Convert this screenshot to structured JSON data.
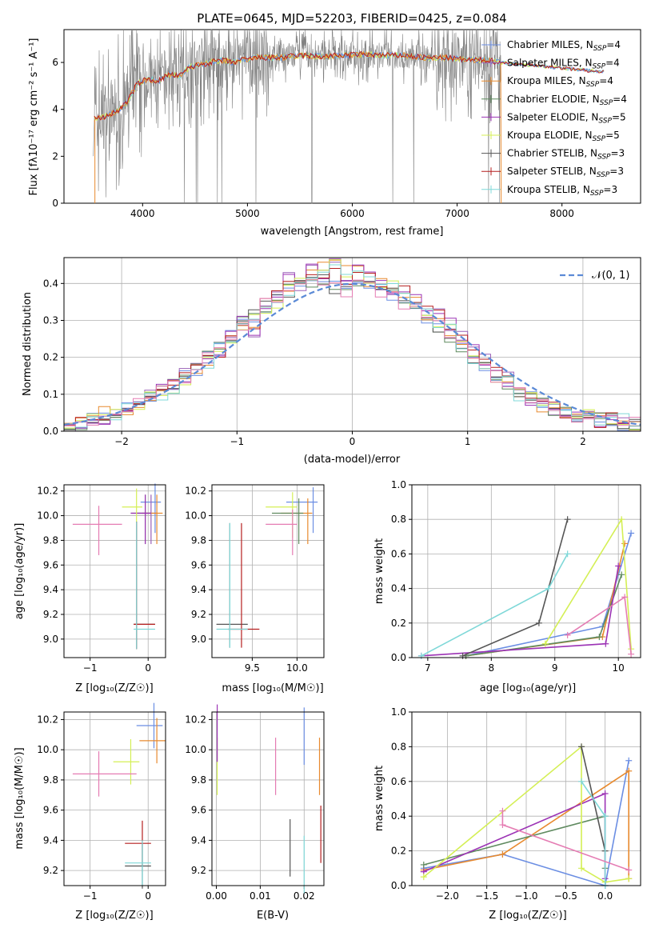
{
  "colors": {
    "cMILES": "#6b8ee3",
    "sMILES": "#9a60b8",
    "kMILES": "#e88a2e",
    "cELODIE": "#5f8a5f",
    "sELODIE": "#9c33b5",
    "kELODIE": "#d4ef55",
    "cSTELIB": "#555555",
    "sSTELIB": "#b51f1f",
    "kSTELIB": "#7fd8d8",
    "pink": "#e57cb3",
    "normal": "#5b8ad6",
    "grey": "#808080"
  },
  "figure": {
    "title": "PLATE=0645, MJD=52203, FIBERID=0425, z=0.084"
  },
  "spectrum": {
    "xlabel": "wavelength [Angstrom, rest frame]",
    "ylabel": "Flux [fλ10⁻¹⁷ erg cm⁻² s⁻¹ A⁻¹]",
    "xticks": [
      "4000",
      "5000",
      "6000",
      "7000",
      "8000"
    ],
    "yticks": [
      "0",
      "2",
      "4",
      "6"
    ],
    "xlim": [
      3250,
      8750
    ],
    "ylim": [
      0,
      7.4
    ],
    "legend": [
      {
        "label": "Chabrier MILES, N",
        "sub": "SSP",
        "suffix": "=4",
        "color_key": "cMILES"
      },
      {
        "label": "Salpeter MILES, N",
        "sub": "SSP",
        "suffix": "=4",
        "color_key": "sMILES"
      },
      {
        "label": "Kroupa MILES, N",
        "sub": "SSP",
        "suffix": "=4",
        "color_key": "kMILES"
      },
      {
        "label": "Chabrier ELODIE, N",
        "sub": "SSP",
        "suffix": "=4",
        "color_key": "cELODIE"
      },
      {
        "label": "Salpeter ELODIE, N",
        "sub": "SSP",
        "suffix": "=5",
        "color_key": "sELODIE"
      },
      {
        "label": "Kroupa ELODIE, N",
        "sub": "SSP",
        "suffix": "=5",
        "color_key": "kELODIE"
      },
      {
        "label": "Chabrier STELIB, N",
        "sub": "SSP",
        "suffix": "=3",
        "color_key": "cSTELIB"
      },
      {
        "label": "Salpeter STELIB, N",
        "sub": "SSP",
        "suffix": "=3",
        "color_key": "sSTELIB"
      },
      {
        "label": "Kroupa STELIB, N",
        "sub": "SSP",
        "suffix": "=3",
        "color_key": "kSTELIB"
      }
    ]
  },
  "residuals": {
    "xlabel": "(data-model)/error",
    "ylabel": "Normed distribution",
    "xticks": [
      "−2",
      "−1",
      "0",
      "1",
      "2"
    ],
    "yticks": [
      "0.0",
      "0.1",
      "0.2",
      "0.3",
      "0.4"
    ],
    "legend_label": "𝒩(0, 1)"
  },
  "panels": {
    "age_vs_Z": {
      "xlabel": "Z [log₁₀(Z/Z☉)]",
      "ylabel": "age  [log₁₀(age/yr)]",
      "xticks": [
        "−1",
        "0"
      ],
      "yticks": [
        "9.0",
        "9.2",
        "9.4",
        "9.6",
        "9.8",
        "10.0",
        "10.2"
      ]
    },
    "age_vs_mass": {
      "xlabel": "mass [log₁₀(M/M☉)]",
      "xticks": [
        "9.5",
        "10.0"
      ],
      "yticks": [
        "9.0",
        "9.2",
        "9.4",
        "9.6",
        "9.8",
        "10.0",
        "10.2"
      ]
    },
    "mw_vs_age": {
      "xlabel": "age  [log₁₀(age/yr)]",
      "ylabel": "mass weight",
      "xticks": [
        "7",
        "8",
        "9",
        "10"
      ],
      "yticks": [
        "0.0",
        "0.2",
        "0.4",
        "0.6",
        "0.8",
        "1.0"
      ]
    },
    "mass_vs_Z": {
      "xlabel": "Z [log₁₀(Z/Z☉)]",
      "ylabel": "mass [log₁₀(M/M☉)]",
      "xticks": [
        "−1",
        "0"
      ],
      "yticks": [
        "9.2",
        "9.4",
        "9.6",
        "9.8",
        "10.0",
        "10.2"
      ]
    },
    "mass_vs_ebv": {
      "xlabel": "E(B-V)",
      "xticks": [
        "0.00",
        "0.01",
        "0.02"
      ],
      "yticks": [
        "9.2",
        "9.4",
        "9.6",
        "9.8",
        "10.0",
        "10.2"
      ]
    },
    "mw_vs_Z": {
      "xlabel": "Z [log₁₀(Z/Z☉)]",
      "ylabel": "mass weight",
      "xticks": [
        "−2.0",
        "−1.5",
        "−1.0",
        "−0.5",
        "0.0"
      ],
      "yticks": [
        "0.0",
        "0.2",
        "0.4",
        "0.6",
        "0.8",
        "1.0"
      ]
    }
  },
  "chart_data": [
    {
      "type": "line",
      "title": "PLATE=0645, MJD=52203, FIBERID=0425, z=0.084",
      "xlabel": "wavelength [Angstrom, rest frame]",
      "ylabel": "Flux [fλ10⁻¹⁷ erg cm⁻² s⁻¹ A⁻¹]",
      "xlim": [
        3250,
        8750
      ],
      "ylim": [
        0,
        7.4
      ],
      "series": [
        {
          "name": "data",
          "x": [
            3550,
            3650,
            3750,
            3850,
            3950,
            4050,
            4150,
            4250,
            4350,
            4450,
            4550,
            4650,
            4750,
            4850,
            4950,
            5100,
            5300,
            5500,
            5700,
            5900,
            6100,
            6300,
            6500,
            6700,
            6900,
            7100,
            7300,
            7400
          ],
          "y": [
            3.6,
            3.7,
            3.9,
            4.3,
            5.1,
            5.3,
            5.2,
            5.5,
            5.4,
            5.8,
            5.9,
            6.0,
            6.1,
            6.0,
            6.1,
            6.2,
            6.2,
            6.3,
            6.25,
            6.3,
            6.35,
            6.3,
            6.3,
            6.2,
            6.2,
            6.1,
            6.1,
            6.0
          ]
        }
      ]
    },
    {
      "type": "bar",
      "xlabel": "(data-model)/error",
      "ylabel": "Normed distribution",
      "xlim": [
        -2.5,
        2.5
      ],
      "ylim": [
        0,
        0.47
      ],
      "x": [
        -2.45,
        -2.35,
        -2.25,
        -2.15,
        -2.05,
        -1.95,
        -1.85,
        -1.75,
        -1.65,
        -1.55,
        -1.45,
        -1.35,
        -1.25,
        -1.15,
        -1.05,
        -0.95,
        -0.85,
        -0.75,
        -0.65,
        -0.55,
        -0.45,
        -0.35,
        -0.25,
        -0.15,
        -0.05,
        0.05,
        0.15,
        0.25,
        0.35,
        0.45,
        0.55,
        0.65,
        0.75,
        0.85,
        0.95,
        1.05,
        1.15,
        1.25,
        1.35,
        1.45,
        1.55,
        1.65,
        1.75,
        1.85,
        1.95,
        2.05,
        2.15,
        2.25,
        2.35,
        2.45
      ],
      "series": [
        {
          "name": "Chabrier MILES, N_SSP=4",
          "values": [
            0.01,
            0.02,
            0.03,
            0.04,
            0.05,
            0.06,
            0.08,
            0.09,
            0.11,
            0.13,
            0.15,
            0.17,
            0.2,
            0.23,
            0.26,
            0.29,
            0.31,
            0.34,
            0.36,
            0.38,
            0.39,
            0.4,
            0.41,
            0.39,
            0.38,
            0.4,
            0.39,
            0.38,
            0.37,
            0.35,
            0.33,
            0.31,
            0.28,
            0.26,
            0.23,
            0.2,
            0.18,
            0.15,
            0.13,
            0.11,
            0.09,
            0.08,
            0.06,
            0.05,
            0.04,
            0.04,
            0.03,
            0.03,
            0.02,
            0.02
          ]
        },
        {
          "name": "Kroupa ELODIE, N_SSP=5",
          "values": [
            0.01,
            0.02,
            0.02,
            0.03,
            0.05,
            0.06,
            0.08,
            0.1,
            0.12,
            0.13,
            0.15,
            0.18,
            0.2,
            0.22,
            0.26,
            0.3,
            0.27,
            0.34,
            0.37,
            0.42,
            0.4,
            0.44,
            0.42,
            0.45,
            0.4,
            0.43,
            0.42,
            0.4,
            0.38,
            0.38,
            0.36,
            0.33,
            0.32,
            0.29,
            0.26,
            0.22,
            0.19,
            0.16,
            0.14,
            0.11,
            0.09,
            0.07,
            0.06,
            0.05,
            0.04,
            0.04,
            0.03,
            0.03,
            0.02,
            0.02
          ]
        },
        {
          "name": "Chabrier STELIB, N_SSP=3",
          "values": [
            0.02,
            0.02,
            0.03,
            0.05,
            0.05,
            0.06,
            0.07,
            0.09,
            0.1,
            0.12,
            0.14,
            0.17,
            0.19,
            0.22,
            0.25,
            0.28,
            0.3,
            0.33,
            0.35,
            0.38,
            0.4,
            0.42,
            0.45,
            0.46,
            0.43,
            0.44,
            0.41,
            0.4,
            0.39,
            0.37,
            0.35,
            0.32,
            0.29,
            0.27,
            0.24,
            0.2,
            0.18,
            0.15,
            0.13,
            0.1,
            0.09,
            0.07,
            0.06,
            0.05,
            0.04,
            0.04,
            0.03,
            0.03,
            0.03,
            0.02
          ]
        }
      ]
    },
    {
      "type": "scatter",
      "xlabel": "Z [log₁₀(Z/Z☉)]",
      "ylabel": "age  [log₁₀(age/yr)]",
      "xlim": [
        -1.45,
        0.3
      ],
      "ylim": [
        8.85,
        10.25
      ],
      "series": [
        {
          "name": "Chabrier MILES",
          "x": [
            0.12
          ],
          "y": [
            10.11
          ]
        },
        {
          "name": "Salpeter MILES",
          "x": [
            0.05
          ],
          "y": [
            10.02
          ]
        },
        {
          "name": "Kroupa MILES",
          "x": [
            0.15
          ],
          "y": [
            10.02
          ]
        },
        {
          "name": "Chabrier ELODIE",
          "x": [
            -0.05
          ],
          "y": [
            10.02
          ]
        },
        {
          "name": "Salpeter ELODIE",
          "x": [
            -0.05
          ],
          "y": [
            10.02
          ]
        },
        {
          "name": "Kroupa ELODIE",
          "x": [
            -0.2
          ],
          "y": [
            10.07
          ]
        },
        {
          "name": "Chabrier STELIB",
          "x": [
            -0.2
          ],
          "y": [
            9.12
          ]
        },
        {
          "name": "Salpeter STELIB",
          "x": [
            -0.2
          ],
          "y": [
            9.12
          ]
        },
        {
          "name": "Kroupa STELIB",
          "x": [
            -0.2
          ],
          "y": [
            9.08
          ]
        },
        {
          "name": "pink",
          "x": [
            -0.85
          ],
          "y": [
            9.93
          ]
        }
      ]
    },
    {
      "type": "scatter",
      "xlabel": "mass [log₁₀(M/M☉)]",
      "xlim": [
        9.05,
        10.3
      ],
      "ylim": [
        8.85,
        10.25
      ],
      "series": [
        {
          "name": "Chabrier MILES",
          "x": [
            10.18
          ],
          "y": [
            10.11
          ]
        },
        {
          "name": "Kroupa MILES",
          "x": [
            10.12
          ],
          "y": [
            10.02
          ]
        },
        {
          "name": "Chabrier ELODIE",
          "x": [
            10.02
          ],
          "y": [
            10.02
          ]
        },
        {
          "name": "Kroupa ELODIE",
          "x": [
            9.95
          ],
          "y": [
            10.07
          ]
        },
        {
          "name": "Chabrier STELIB",
          "x": [
            9.25
          ],
          "y": [
            9.12
          ]
        },
        {
          "name": "Salpeter STELIB",
          "x": [
            9.38
          ],
          "y": [
            9.08
          ]
        },
        {
          "name": "Kroupa STELIB",
          "x": [
            9.25
          ],
          "y": [
            9.08
          ]
        },
        {
          "name": "pink",
          "x": [
            9.95
          ],
          "y": [
            9.93
          ]
        }
      ]
    },
    {
      "type": "line",
      "xlabel": "age  [log₁₀(age/yr)]",
      "ylabel": "mass weight",
      "xlim": [
        6.75,
        10.35
      ],
      "ylim": [
        0,
        1
      ],
      "series": [
        {
          "name": "Chabrier MILES",
          "x": [
            7.6,
            9.75,
            10.2
          ],
          "y": [
            0.01,
            0.18,
            0.72
          ]
        },
        {
          "name": "Kroupa MILES",
          "x": [
            7.6,
            9.75,
            10.1
          ],
          "y": [
            0.01,
            0.12,
            0.66
          ]
        },
        {
          "name": "Chabrier ELODIE",
          "x": [
            7.6,
            9.7,
            10.05
          ],
          "y": [
            0.01,
            0.12,
            0.48
          ]
        },
        {
          "name": "Salpeter ELODIE",
          "x": [
            6.9,
            9.8,
            10.0
          ],
          "y": [
            0.01,
            0.08,
            0.53
          ]
        },
        {
          "name": "Kroupa ELODIE",
          "x": [
            8.85,
            10.05,
            10.2
          ],
          "y": [
            0.08,
            0.8,
            0.05
          ]
        },
        {
          "name": "Chabrier STELIB",
          "x": [
            7.55,
            8.75,
            9.2
          ],
          "y": [
            0.01,
            0.2,
            0.8
          ]
        },
        {
          "name": "Kroupa STELIB",
          "x": [
            6.9,
            8.9,
            9.2
          ],
          "y": [
            0.01,
            0.4,
            0.6
          ]
        },
        {
          "name": "pink",
          "x": [
            9.2,
            10.1,
            10.2
          ],
          "y": [
            0.13,
            0.35,
            0.02
          ]
        }
      ]
    },
    {
      "type": "scatter",
      "xlabel": "Z [log₁₀(Z/Z☉)]",
      "ylabel": "mass [log₁₀(M/M☉)]",
      "xlim": [
        -1.45,
        0.3
      ],
      "ylim": [
        9.1,
        10.25
      ],
      "series": [
        {
          "name": "Chabrier MILES",
          "x": [
            0.1
          ],
          "y": [
            10.16
          ]
        },
        {
          "name": "Kroupa MILES",
          "x": [
            0.15
          ],
          "y": [
            10.06
          ]
        },
        {
          "name": "Kroupa ELODIE",
          "x": [
            -0.3
          ],
          "y": [
            9.92
          ]
        },
        {
          "name": "Chabrier STELIB",
          "x": [
            -0.1
          ],
          "y": [
            9.23
          ]
        },
        {
          "name": "Salpeter STELIB",
          "x": [
            -0.1
          ],
          "y": [
            9.38
          ]
        },
        {
          "name": "Kroupa STELIB",
          "x": [
            -0.1
          ],
          "y": [
            9.25
          ]
        },
        {
          "name": "pink",
          "x": [
            -0.85
          ],
          "y": [
            9.84
          ]
        }
      ]
    },
    {
      "type": "scatter",
      "xlabel": "E(B-V)",
      "xlim": [
        -0.001,
        0.0245
      ],
      "ylim": [
        9.1,
        10.25
      ],
      "series": [
        {
          "name": "Chabrier MILES",
          "x": [
            0.02
          ],
          "y": [
            10.1
          ]
        },
        {
          "name": "Kroupa MILES",
          "x": [
            0.0235
          ],
          "y": [
            9.9
          ]
        },
        {
          "name": "Kroupa ELODIE",
          "x": [
            0.0002
          ],
          "y": [
            9.9
          ]
        },
        {
          "name": "Salpeter ELODIE",
          "x": [
            0.0002
          ],
          "y": [
            10.12
          ]
        },
        {
          "name": "Chabrier STELIB",
          "x": [
            0.0168
          ],
          "y": [
            9.36
          ]
        },
        {
          "name": "Salpeter STELIB",
          "x": [
            0.0238
          ],
          "y": [
            9.45
          ]
        },
        {
          "name": "Kroupa STELIB",
          "x": [
            0.02
          ],
          "y": [
            9.25
          ]
        },
        {
          "name": "pink",
          "x": [
            0.0135
          ],
          "y": [
            9.9
          ]
        }
      ]
    },
    {
      "type": "line",
      "xlabel": "Z [log₁₀(Z/Z☉)]",
      "ylabel": "mass weight",
      "xlim": [
        -2.45,
        0.45
      ],
      "ylim": [
        0,
        1
      ],
      "series": [
        {
          "name": "Chabrier MILES",
          "x": [
            -2.3,
            -1.3,
            0.0,
            0.3
          ],
          "y": [
            0.1,
            0.18,
            0.0,
            0.72
          ]
        },
        {
          "name": "Kroupa MILES",
          "x": [
            -2.3,
            -1.3,
            0.3,
            0.3
          ],
          "y": [
            0.09,
            0.18,
            0.66,
            0.04
          ]
        },
        {
          "name": "Chabrier ELODIE",
          "x": [
            -2.3,
            0.0,
            0.0
          ],
          "y": [
            0.12,
            0.4,
            0.1
          ]
        },
        {
          "name": "Salpeter ELODIE",
          "x": [
            -2.3,
            0.0,
            0.0
          ],
          "y": [
            0.08,
            0.53,
            0.04
          ]
        },
        {
          "name": "Kroupa ELODIE",
          "x": [
            -2.3,
            -0.3,
            -0.3,
            0.0,
            0.3
          ],
          "y": [
            0.05,
            0.8,
            0.1,
            0.02,
            0.04
          ]
        },
        {
          "name": "Chabrier STELIB",
          "x": [
            -0.3,
            0.0
          ],
          "y": [
            0.8,
            0.2
          ]
        },
        {
          "name": "Kroupa STELIB",
          "x": [
            -0.3,
            0.0,
            0.0
          ],
          "y": [
            0.6,
            0.4,
            0.0
          ]
        },
        {
          "name": "pink",
          "x": [
            -1.3,
            -1.3,
            0.3
          ],
          "y": [
            0.43,
            0.35,
            0.09
          ]
        }
      ]
    }
  ]
}
